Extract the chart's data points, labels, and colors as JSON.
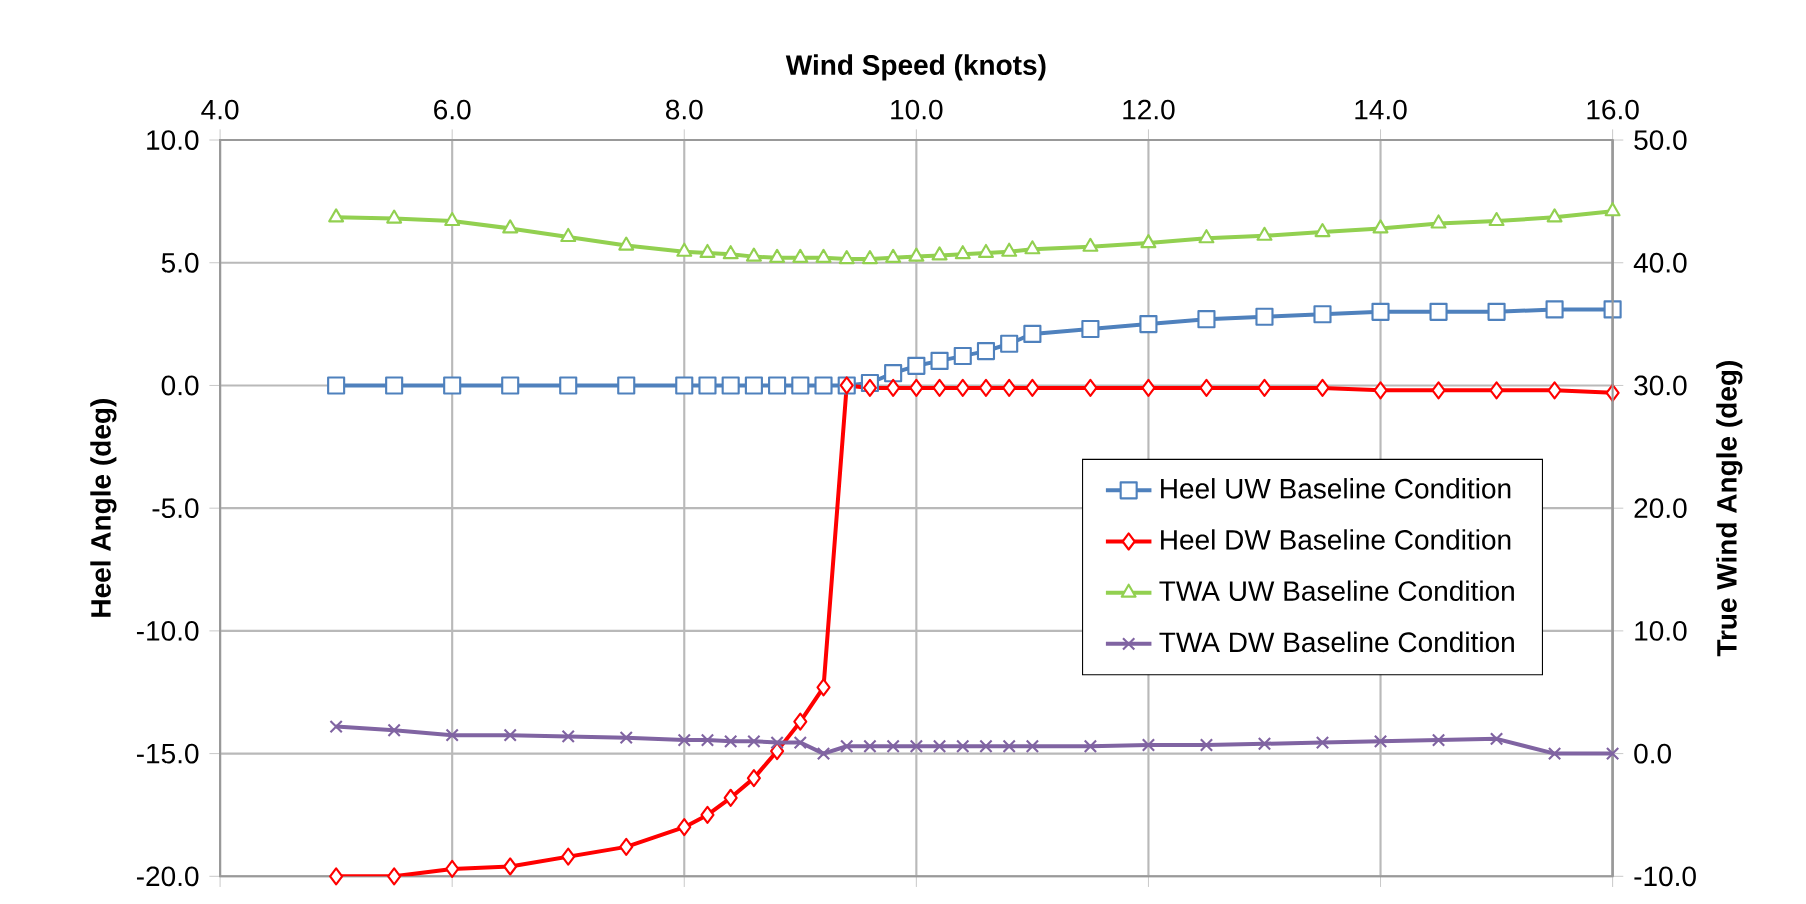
{
  "chart_data": {
    "type": "line",
    "xlabel": "Wind Speed (knots)",
    "ylabel": "Heel Angle (deg)",
    "y2label": "True Wind Angle (deg)",
    "x": [
      5,
      5.5,
      6,
      6.5,
      7,
      7.5,
      8,
      8.2,
      8.4,
      8.6,
      8.8,
      9,
      9.2,
      9.4,
      9.6,
      9.8,
      10,
      10.2,
      10.4,
      10.6,
      10.8,
      11,
      11.5,
      12,
      12.5,
      13,
      13.5,
      14,
      14.5,
      15,
      15.5,
      16
    ],
    "series": [
      {
        "name": "Heel UW Baseline Condition",
        "color": "#4f81bd",
        "marker": "square",
        "values": [
          0,
          0,
          0,
          0,
          0,
          0,
          0,
          0,
          0,
          0,
          0,
          0,
          0,
          0,
          0.1,
          0.5,
          0.8,
          1.0,
          1.2,
          1.4,
          1.7,
          2.1,
          2.3,
          2.5,
          2.7,
          2.8,
          2.9,
          3.0,
          3.0,
          3.0,
          3.1,
          3.1
        ]
      },
      {
        "name": "Heel DW Baseline Condition",
        "color": "#ff0000",
        "marker": "diamond",
        "values": [
          -20,
          -20,
          -19.7,
          -19.6,
          -19.2,
          -18.8,
          -18.0,
          -17.5,
          -16.8,
          -16.0,
          -14.9,
          -13.7,
          -12.3,
          0,
          -0.1,
          -0.1,
          -0.1,
          -0.1,
          -0.1,
          -0.1,
          -0.1,
          -0.1,
          -0.1,
          -0.1,
          -0.1,
          -0.1,
          -0.1,
          -0.2,
          -0.2,
          -0.2,
          -0.2,
          -0.3
        ]
      },
      {
        "name": "TWA UW Baseline Condition",
        "color": "#92d050",
        "marker": "triangle",
        "axis": "y2",
        "values": [
          43.7,
          43.6,
          43.4,
          42.8,
          42.1,
          41.4,
          40.9,
          40.8,
          40.7,
          40.5,
          40.4,
          40.4,
          40.4,
          40.3,
          40.3,
          40.4,
          40.5,
          40.6,
          40.7,
          40.8,
          40.9,
          41.1,
          41.3,
          41.6,
          42.0,
          42.2,
          42.5,
          42.8,
          43.2,
          43.4,
          43.7,
          44.2
        ]
      },
      {
        "name": "TWA DW Baseline Condition",
        "color": "#8064a2",
        "marker": "cross",
        "axis": "y2",
        "values": [
          2.2,
          1.9,
          1.5,
          1.5,
          1.4,
          1.3,
          1.1,
          1.1,
          1.0,
          1.0,
          0.9,
          0.9,
          0.0,
          0.6,
          0.6,
          0.6,
          0.6,
          0.6,
          0.6,
          0.6,
          0.6,
          0.6,
          0.6,
          0.7,
          0.7,
          0.8,
          0.9,
          1.0,
          1.1,
          1.2,
          0.0,
          0.0
        ]
      }
    ],
    "xlim": [
      4,
      16
    ],
    "xticks": [
      {
        "value": 4,
        "label": "4.0"
      },
      {
        "value": 6,
        "label": "6.0"
      },
      {
        "value": 8,
        "label": "8.0"
      },
      {
        "value": 10,
        "label": "10.0"
      },
      {
        "value": 12,
        "label": "12.0"
      },
      {
        "value": 14,
        "label": "14.0"
      },
      {
        "value": 16,
        "label": "16.0"
      }
    ],
    "ylim": [
      -20,
      10
    ],
    "yticks": [
      {
        "value": -20,
        "label": "-20.0"
      },
      {
        "value": -15,
        "label": "-15.0"
      },
      {
        "value": -10,
        "label": "-10.0"
      },
      {
        "value": -5,
        "label": "-5.0"
      },
      {
        "value": 0,
        "label": "0.0"
      },
      {
        "value": 5,
        "label": "5.0"
      },
      {
        "value": 10,
        "label": "10.0"
      }
    ],
    "y2lim": [
      -10,
      50
    ],
    "y2ticks": [
      {
        "value": -10,
        "label": "-10.0"
      },
      {
        "value": 0,
        "label": "0.0"
      },
      {
        "value": 10,
        "label": "10.0"
      },
      {
        "value": 20,
        "label": "20.0"
      },
      {
        "value": 30,
        "label": "30.0"
      },
      {
        "value": 40,
        "label": "40.0"
      },
      {
        "value": 50,
        "label": "50.0"
      }
    ],
    "grid": true,
    "legend": "right",
    "line_style": "solid"
  }
}
